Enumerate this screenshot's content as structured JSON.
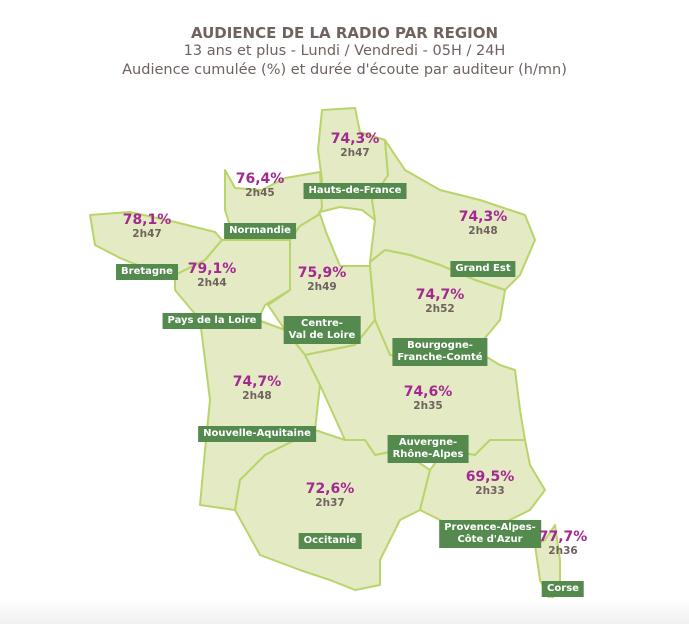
{
  "header": {
    "title": "AUDIENCE DE LA RADIO PAR REGION",
    "subtitle": "13 ans et plus - Lundi / Vendredi - 05H / 24H",
    "legend": "Audience cumulée (%) et durée d'écoute par auditeur (h/mn)"
  },
  "colors": {
    "region_fill": "#e3eac4",
    "region_border": "#b9d46a",
    "label_bg": "#548a4e",
    "percent": "#a3288f",
    "duration": "#6f625f"
  },
  "regions": [
    {
      "name": "Hauts-de-France",
      "audience": "74,3%",
      "duration": "2h47"
    },
    {
      "name": "Normandie",
      "audience": "76,4%",
      "duration": "2h45"
    },
    {
      "name": "Bretagne",
      "audience": "78,1%",
      "duration": "2h47"
    },
    {
      "name": "Grand Est",
      "audience": "74,3%",
      "duration": "2h48"
    },
    {
      "name": "Pays de la Loire",
      "audience": "79,1%",
      "duration": "2h44"
    },
    {
      "name": "Centre-\nVal de Loire",
      "audience": "75,9%",
      "duration": "2h49"
    },
    {
      "name": "Bourgogne-\nFranche-Comté",
      "audience": "74,7%",
      "duration": "2h52"
    },
    {
      "name": "Nouvelle-Aquitaine",
      "audience": "74,7%",
      "duration": "2h48"
    },
    {
      "name": "Auvergne-\nRhône-Alpes",
      "audience": "74,6%",
      "duration": "2h35"
    },
    {
      "name": "Occitanie",
      "audience": "72,6%",
      "duration": "2h37"
    },
    {
      "name": "Provence-Alpes-\nCôte d'Azur",
      "audience": "69,5%",
      "duration": "2h33"
    },
    {
      "name": "Corse",
      "audience": "77,7%",
      "duration": "2h36"
    }
  ]
}
